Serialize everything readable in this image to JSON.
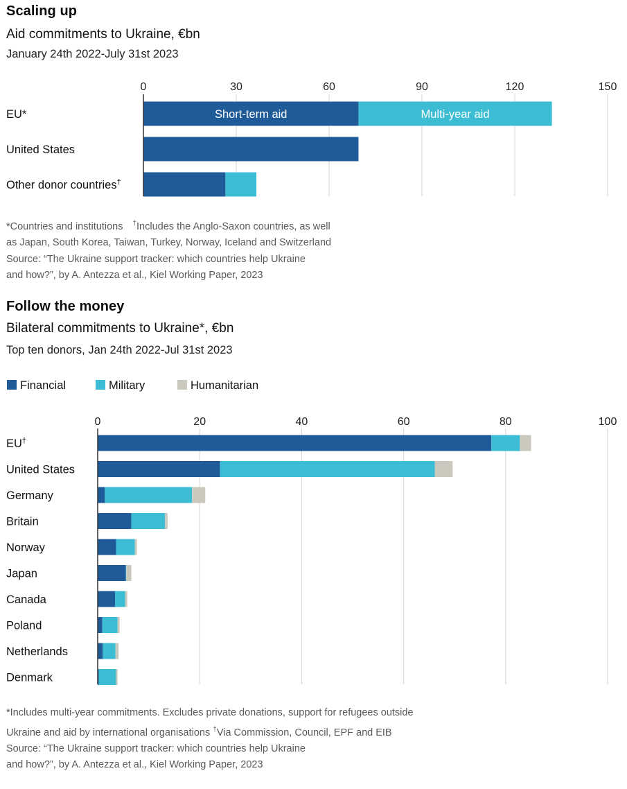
{
  "chart1": {
    "title": "Scaling up",
    "subtitle": "Aid commitments to Ukraine, €bn",
    "date_range": "January 24th 2022-July 31st 2023",
    "footnote_lines": [
      "*Countries and institutions",
      "as Japan, South Korea, Taiwan, Turkey, Norway, Iceland and Switzerland",
      "Source: “The Ukraine support tracker: which countries help Ukraine",
      "and how?”, by A. Antezza et al., Kiel Working Paper, 2023"
    ],
    "footnote_dagger": "†",
    "footnote_dagger_text": "Includes the Anglo-Saxon countries, as well",
    "colors": {
      "short_term": "#1f5b99",
      "multi_year": "#3cbdd3",
      "grid": "#d3d3d3",
      "baseline": "#333333"
    }
  },
  "chart2": {
    "title": "Follow the money",
    "subtitle": "Bilateral commitments to Ukraine*, €bn",
    "date_range": "Top ten donors, Jan 24th 2022-Jul 31st 2023",
    "legend": [
      {
        "label": "Financial",
        "color": "#1f5b99"
      },
      {
        "label": "Military",
        "color": "#3cbdd3"
      },
      {
        "label": "Humanitarian",
        "color": "#cbc9bd"
      }
    ],
    "footnote_lines": [
      "*Includes multi-year commitments. Excludes private donations, support for refugees outside",
      "Ukraine and aid by international organisations",
      "Source: “The Ukraine support tracker: which countries help Ukraine",
      "and how?”, by A. Antezza et al., Kiel Working Paper, 2023"
    ],
    "footnote_dagger": "†",
    "footnote_dagger_text": "Via Commission, Council, EPF and EIB"
  },
  "chart_data": [
    {
      "type": "bar",
      "orientation": "horizontal",
      "stacked": true,
      "title": "Scaling up",
      "subtitle": "Aid commitments to Ukraine, €bn",
      "categories": [
        "EU*",
        "United States",
        "Other donor countries"
      ],
      "category_marks": [
        "",
        "",
        "†"
      ],
      "series": [
        {
          "name": "Short-term aid",
          "values": [
            69.5,
            69.5,
            26.5
          ],
          "color": "#1f5b99"
        },
        {
          "name": "Multi-year aid",
          "values": [
            62.5,
            0,
            10
          ],
          "color": "#3cbdd3"
        }
      ],
      "inline_labels": {
        "short_term": "Short-term aid",
        "multi_year": "Multi-year aid"
      },
      "xlim": [
        0,
        150
      ],
      "xticks": [
        0,
        30,
        60,
        90,
        120,
        150
      ],
      "xticklabels": [
        "0",
        "30",
        "60",
        "90",
        "120",
        "150"
      ],
      "grid": true
    },
    {
      "type": "bar",
      "orientation": "horizontal",
      "stacked": true,
      "title": "Follow the money",
      "subtitle": "Bilateral commitments to Ukraine*, €bn",
      "categories": [
        "EU",
        "United States",
        "Germany",
        "Britain",
        "Norway",
        "Japan",
        "Canada",
        "Poland",
        "Netherlands",
        "Denmark"
      ],
      "category_marks": [
        "†",
        "",
        "",
        "",
        "",
        "",
        "",
        "",
        "",
        ""
      ],
      "series": [
        {
          "name": "Financial",
          "values": [
            77.2,
            24.0,
            1.4,
            6.6,
            3.6,
            5.5,
            3.4,
            0.9,
            1.0,
            0.2
          ],
          "color": "#1f5b99"
        },
        {
          "name": "Military",
          "values": [
            5.6,
            42.1,
            17.1,
            6.6,
            3.7,
            0.1,
            2.0,
            3.0,
            2.5,
            3.4
          ],
          "color": "#3cbdd3"
        },
        {
          "name": "Humanitarian",
          "values": [
            2.2,
            3.5,
            2.6,
            0.5,
            0.4,
            1.0,
            0.4,
            0.4,
            0.6,
            0.3
          ],
          "color": "#cbc9bd"
        }
      ],
      "xlim": [
        0,
        100
      ],
      "xticks": [
        0,
        20,
        40,
        60,
        80,
        100
      ],
      "xticklabels": [
        "0",
        "20",
        "40",
        "60",
        "80",
        "100"
      ],
      "grid": true
    }
  ]
}
